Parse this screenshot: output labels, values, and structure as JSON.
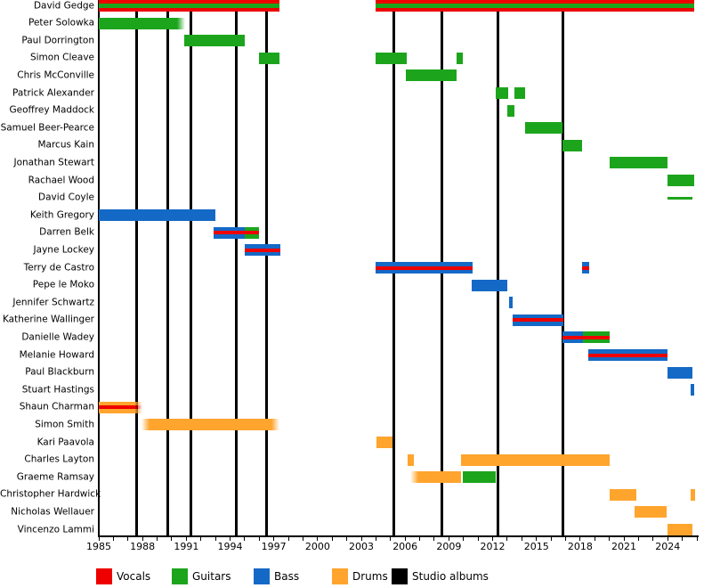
{
  "chart_data": {
    "type": "timeline",
    "title": "",
    "axis": {
      "year_start": 1985,
      "year_end": 2026,
      "tick_every": 1,
      "label_every": 3,
      "tick_labels": [
        "1985",
        "1988",
        "1991",
        "1994",
        "1997",
        "2000",
        "2003",
        "2006",
        "2009",
        "2012",
        "2015",
        "2018",
        "2021",
        "2024"
      ]
    },
    "colors": {
      "vocals": "#ee0000",
      "guitars": "#1ca51c",
      "bass": "#1569c6",
      "drums": "#ffa42d",
      "albums": "#000000"
    },
    "legend": [
      {
        "label": "Vocals",
        "color": "#ee0000"
      },
      {
        "label": "Guitars",
        "color": "#1ca51c"
      },
      {
        "label": "Bass",
        "color": "#1569c6"
      },
      {
        "label": "Drums",
        "color": "#ffa42d"
      },
      {
        "label": "Studio albums",
        "color": "#000000"
      }
    ],
    "album_years": [
      1987.6,
      1989.7,
      1991.3,
      1994.45,
      1996.5,
      2005.2,
      2008.5,
      2012.35,
      2016.8
    ],
    "members": [
      {
        "name": "David Gedge",
        "segments": [
          {
            "roles": [
              "vocals",
              "guitars"
            ],
            "start": 1985.0,
            "end": 1997.4
          },
          {
            "roles": [
              "vocals",
              "guitars"
            ],
            "start": 2004.0,
            "end": 2025.8
          }
        ]
      },
      {
        "name": "Peter Solowka",
        "segments": [
          {
            "roles": [
              "guitars"
            ],
            "start": 1985.0,
            "end": 1990.9,
            "fade": "right"
          }
        ]
      },
      {
        "name": "Paul Dorrington",
        "segments": [
          {
            "roles": [
              "guitars"
            ],
            "start": 1990.85,
            "end": 1995.0
          }
        ]
      },
      {
        "name": "Simon Cleave",
        "segments": [
          {
            "roles": [
              "guitars"
            ],
            "start": 1996.0,
            "end": 1997.4
          },
          {
            "roles": [
              "guitars"
            ],
            "start": 2004.0,
            "end": 2006.1
          },
          {
            "roles": [
              "guitars"
            ],
            "start": 2009.5,
            "end": 2009.95
          }
        ]
      },
      {
        "name": "Chris McConville",
        "segments": [
          {
            "roles": [
              "guitars"
            ],
            "start": 2006.05,
            "end": 2009.55
          }
        ]
      },
      {
        "name": "Patrick Alexander",
        "segments": [
          {
            "roles": [
              "guitars"
            ],
            "start": 2012.2,
            "end": 2013.05
          },
          {
            "roles": [
              "guitars"
            ],
            "start": 2013.5,
            "end": 2014.2
          }
        ]
      },
      {
        "name": "Geoffrey Maddock",
        "segments": [
          {
            "roles": [
              "guitars"
            ],
            "start": 2013.0,
            "end": 2013.5
          }
        ]
      },
      {
        "name": "Samuel Beer-Pearce",
        "segments": [
          {
            "roles": [
              "guitars"
            ],
            "start": 2014.2,
            "end": 2016.8
          }
        ]
      },
      {
        "name": "Marcus Kain",
        "segments": [
          {
            "roles": [
              "guitars"
            ],
            "start": 2016.8,
            "end": 2018.15
          }
        ]
      },
      {
        "name": "Jonathan Stewart",
        "segments": [
          {
            "roles": [
              "guitars"
            ],
            "start": 2020.0,
            "end": 2024.0
          }
        ]
      },
      {
        "name": "Rachael Wood",
        "segments": [
          {
            "roles": [
              "guitars"
            ],
            "start": 2024.0,
            "end": 2025.8
          }
        ]
      },
      {
        "name": "David Coyle",
        "segments": [
          {
            "roles": [
              "guitars"
            ],
            "start": 2024.0,
            "end": 2025.7,
            "thin": true
          }
        ]
      },
      {
        "name": "Keith Gregory",
        "segments": [
          {
            "roles": [
              "bass"
            ],
            "start": 1985.0,
            "end": 1993.0
          }
        ]
      },
      {
        "name": "Darren Belk",
        "segments": [
          {
            "roles": [
              "bass",
              "vocals"
            ],
            "start": 1992.9,
            "end": 1995.0
          },
          {
            "roles": [
              "guitars",
              "vocals"
            ],
            "start": 1995.0,
            "end": 1996.0
          }
        ]
      },
      {
        "name": "Jayne Lockey",
        "segments": [
          {
            "roles": [
              "bass",
              "vocals"
            ],
            "start": 1995.0,
            "end": 1997.45
          }
        ]
      },
      {
        "name": "Terry de Castro",
        "segments": [
          {
            "roles": [
              "bass",
              "vocals"
            ],
            "start": 2004.0,
            "end": 2010.6
          },
          {
            "roles": [
              "bass",
              "vocals"
            ],
            "start": 2018.1,
            "end": 2018.6
          }
        ]
      },
      {
        "name": "Pepe le Moko",
        "segments": [
          {
            "roles": [
              "bass"
            ],
            "start": 2010.55,
            "end": 2013.0
          }
        ]
      },
      {
        "name": "Jennifer Schwartz",
        "segments": [
          {
            "roles": [
              "bass"
            ],
            "start": 2013.15,
            "end": 2013.35
          }
        ]
      },
      {
        "name": "Katherine Wallinger",
        "segments": [
          {
            "roles": [
              "bass",
              "vocals"
            ],
            "start": 2013.35,
            "end": 2016.85
          }
        ]
      },
      {
        "name": "Danielle Wadey",
        "segments": [
          {
            "roles": [
              "bass",
              "vocals"
            ],
            "start": 2016.8,
            "end": 2018.2
          },
          {
            "roles": [
              "guitars",
              "vocals"
            ],
            "start": 2018.2,
            "end": 2020.05
          }
        ]
      },
      {
        "name": "Melanie Howard",
        "segments": [
          {
            "roles": [
              "bass",
              "vocals"
            ],
            "start": 2018.55,
            "end": 2024.0
          }
        ]
      },
      {
        "name": "Paul Blackburn",
        "segments": [
          {
            "roles": [
              "bass"
            ],
            "start": 2024.0,
            "end": 2025.7
          }
        ]
      },
      {
        "name": "Stuart Hastings",
        "segments": [
          {
            "roles": [
              "bass"
            ],
            "start": 2025.6,
            "end": 2025.8
          }
        ]
      },
      {
        "name": "Shaun Charman",
        "segments": [
          {
            "roles": [
              "drums",
              "vocals"
            ],
            "start": 1985.0,
            "end": 1988.0,
            "fade": "right"
          }
        ]
      },
      {
        "name": "Simon Smith",
        "segments": [
          {
            "roles": [
              "drums"
            ],
            "start": 1987.9,
            "end": 1997.4,
            "fade": "both"
          }
        ]
      },
      {
        "name": "Kari Paavola",
        "segments": [
          {
            "roles": [
              "drums"
            ],
            "start": 2004.05,
            "end": 2005.15
          }
        ]
      },
      {
        "name": "Charles Layton",
        "segments": [
          {
            "roles": [
              "drums"
            ],
            "start": 2006.2,
            "end": 2006.6
          },
          {
            "roles": [
              "drums"
            ],
            "start": 2009.85,
            "end": 2020.0
          }
        ]
      },
      {
        "name": "Graeme Ramsay",
        "segments": [
          {
            "roles": [
              "drums"
            ],
            "start": 2006.35,
            "end": 2009.85,
            "fade": "left"
          },
          {
            "roles": [
              "guitars"
            ],
            "start": 2009.95,
            "end": 2012.2
          }
        ]
      },
      {
        "name": "Christopher Hardwick",
        "segments": [
          {
            "roles": [
              "drums"
            ],
            "start": 2020.0,
            "end": 2021.85
          },
          {
            "roles": [
              "drums"
            ],
            "start": 2025.6,
            "end": 2025.85
          }
        ]
      },
      {
        "name": "Nicholas Wellauer",
        "segments": [
          {
            "roles": [
              "drums"
            ],
            "start": 2021.75,
            "end": 2023.95
          }
        ]
      },
      {
        "name": "Vincenzo Lammi",
        "segments": [
          {
            "roles": [
              "drums"
            ],
            "start": 2024.0,
            "end": 2025.7
          }
        ]
      }
    ]
  }
}
